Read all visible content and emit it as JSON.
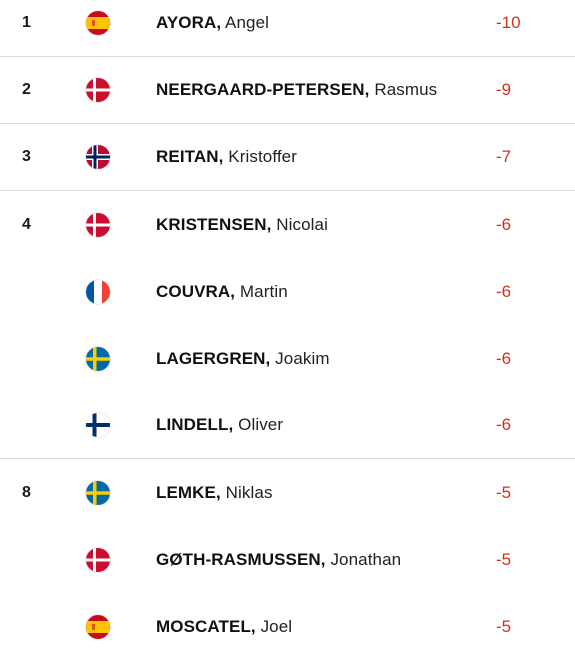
{
  "leaderboard": {
    "rows": [
      {
        "position": "1",
        "last_name": "AYORA,",
        "first_name": "Angel",
        "country": "Spain",
        "flag_icon": "spain-flag-icon",
        "score": "-10"
      },
      {
        "position": "2",
        "last_name": "NEERGAARD-PETERSEN,",
        "first_name": "Rasmus",
        "country": "Denmark",
        "flag_icon": "denmark-flag-icon",
        "score": "-9"
      },
      {
        "position": "3",
        "last_name": "REITAN,",
        "first_name": "Kristoffer",
        "country": "Norway",
        "flag_icon": "norway-flag-icon",
        "score": "-7"
      },
      {
        "position": "4",
        "last_name": "KRISTENSEN,",
        "first_name": "Nicolai",
        "country": "Denmark",
        "flag_icon": "denmark-flag-icon",
        "score": "-6"
      },
      {
        "position": "",
        "last_name": "COUVRA,",
        "first_name": "Martin",
        "country": "France",
        "flag_icon": "france-flag-icon",
        "score": "-6"
      },
      {
        "position": "",
        "last_name": "LAGERGREN,",
        "first_name": "Joakim",
        "country": "Sweden",
        "flag_icon": "sweden-flag-icon",
        "score": "-6"
      },
      {
        "position": "",
        "last_name": "LINDELL,",
        "first_name": "Oliver",
        "country": "Finland",
        "flag_icon": "finland-flag-icon",
        "score": "-6"
      },
      {
        "position": "8",
        "last_name": "LEMKE,",
        "first_name": "Niklas",
        "country": "Sweden",
        "flag_icon": "sweden-flag-icon",
        "score": "-5"
      },
      {
        "position": "",
        "last_name": "GØTH-RASMUSSEN,",
        "first_name": "Jonathan",
        "country": "Denmark",
        "flag_icon": "denmark-flag-icon",
        "score": "-5"
      },
      {
        "position": "",
        "last_name": "MOSCATEL,",
        "first_name": "Joel",
        "country": "Spain",
        "flag_icon": "spain-flag-icon",
        "score": "-5"
      }
    ]
  },
  "colors": {
    "score": "#d0311f",
    "divider": "#dcdcdc"
  }
}
